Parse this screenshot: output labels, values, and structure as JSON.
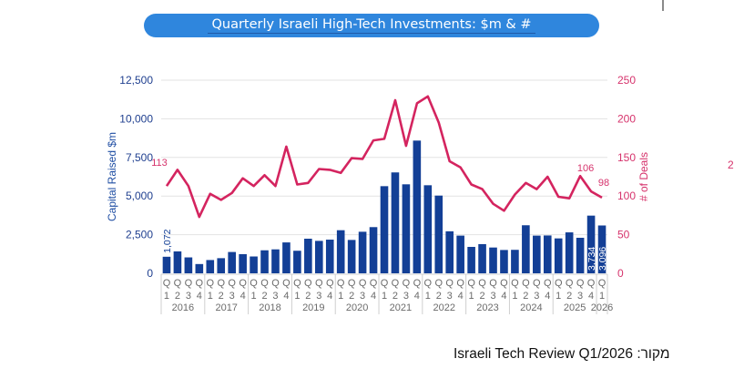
{
  "header": {
    "title": "Quarterly Israeli High-Tech Investments: $m & #"
  },
  "footer": {
    "source": "Israeli Tech Review Q1/2026 :מקור"
  },
  "stray_text": "2",
  "colors": {
    "bar": "#133f96",
    "line": "#d4245f",
    "title_bg": "#2f86dd",
    "grid": "#e3e3e3"
  },
  "chart_data": {
    "type": "bar",
    "combo": "bar+line (dual axis)",
    "title": "Quarterly Israeli High-Tech Investments: $m & #",
    "ylabel": "Capital Raised $m",
    "y2label": "# of Deals",
    "ylim": [
      0,
      12500
    ],
    "y2lim": [
      0,
      250
    ],
    "yticks": [
      "0",
      "2,500",
      "5,000",
      "7,500",
      "10,000",
      "12,500"
    ],
    "y2ticks": [
      "0",
      "50",
      "100",
      "150",
      "200",
      "250"
    ],
    "grid": true,
    "years": [
      "2016",
      "2017",
      "2018",
      "2019",
      "2020",
      "2021",
      "2022",
      "2023",
      "2024",
      "2025",
      "2026"
    ],
    "categories": [
      "2016 Q1",
      "2016 Q2",
      "2016 Q3",
      "2016 Q4",
      "2017 Q1",
      "2017 Q2",
      "2017 Q3",
      "2017 Q4",
      "2018 Q1",
      "2018 Q2",
      "2018 Q3",
      "2018 Q4",
      "2019 Q1",
      "2019 Q2",
      "2019 Q3",
      "2019 Q4",
      "2020 Q1",
      "2020 Q2",
      "2020 Q3",
      "2020 Q4",
      "2021 Q1",
      "2021 Q2",
      "2021 Q3",
      "2021 Q4",
      "2022 Q1",
      "2022 Q2",
      "2022 Q3",
      "2022 Q4",
      "2023 Q1",
      "2023 Q2",
      "2023 Q3",
      "2023 Q4",
      "2024 Q1",
      "2024 Q2",
      "2024 Q3",
      "2024 Q4",
      "2025 Q1",
      "2025 Q2",
      "2025 Q3",
      "2025 Q4",
      "2026 Q1"
    ],
    "quarter_labels": [
      "1",
      "2",
      "3",
      "4",
      "1",
      "2",
      "3",
      "4",
      "1",
      "2",
      "3",
      "4",
      "1",
      "2",
      "3",
      "4",
      "1",
      "2",
      "3",
      "4",
      "1",
      "2",
      "3",
      "4",
      "1",
      "2",
      "3",
      "4",
      "1",
      "2",
      "3",
      "4",
      "1",
      "2",
      "3",
      "4",
      "1",
      "2",
      "3",
      "4",
      "1"
    ],
    "q_prefix": "Q",
    "series": [
      {
        "name": "Capital Raised $m",
        "type": "bar",
        "axis": "left",
        "values": [
          1072,
          1420,
          1030,
          600,
          860,
          980,
          1380,
          1240,
          1090,
          1490,
          1550,
          2000,
          1460,
          2240,
          2100,
          2180,
          2790,
          2160,
          2690,
          2990,
          5640,
          6530,
          5760,
          8590,
          5700,
          5030,
          2720,
          2440,
          1710,
          1890,
          1670,
          1510,
          1520,
          3110,
          2440,
          2450,
          2260,
          2650,
          2300,
          3734,
          3096
        ]
      },
      {
        "name": "# of Deals",
        "type": "line",
        "axis": "right",
        "values": [
          113,
          134,
          113,
          73,
          103,
          95,
          104,
          123,
          113,
          127,
          113,
          164,
          115,
          117,
          135,
          134,
          130,
          149,
          148,
          172,
          174,
          224,
          165,
          220,
          229,
          195,
          145,
          137,
          115,
          109,
          90,
          81,
          102,
          117,
          109,
          125,
          99,
          97,
          126,
          106,
          98
        ]
      }
    ],
    "data_labels": [
      {
        "series": "Capital Raised $m",
        "index": 0,
        "text": "1,072"
      },
      {
        "series": "Capital Raised $m",
        "index": 39,
        "text": "3,734"
      },
      {
        "series": "Capital Raised $m",
        "index": 40,
        "text": "3,096"
      },
      {
        "series": "# of Deals",
        "index": 0,
        "text": "113"
      },
      {
        "series": "# of Deals",
        "index": 39,
        "text": "106"
      },
      {
        "series": "# of Deals",
        "index": 40,
        "text": "98"
      }
    ],
    "legend": "none"
  }
}
